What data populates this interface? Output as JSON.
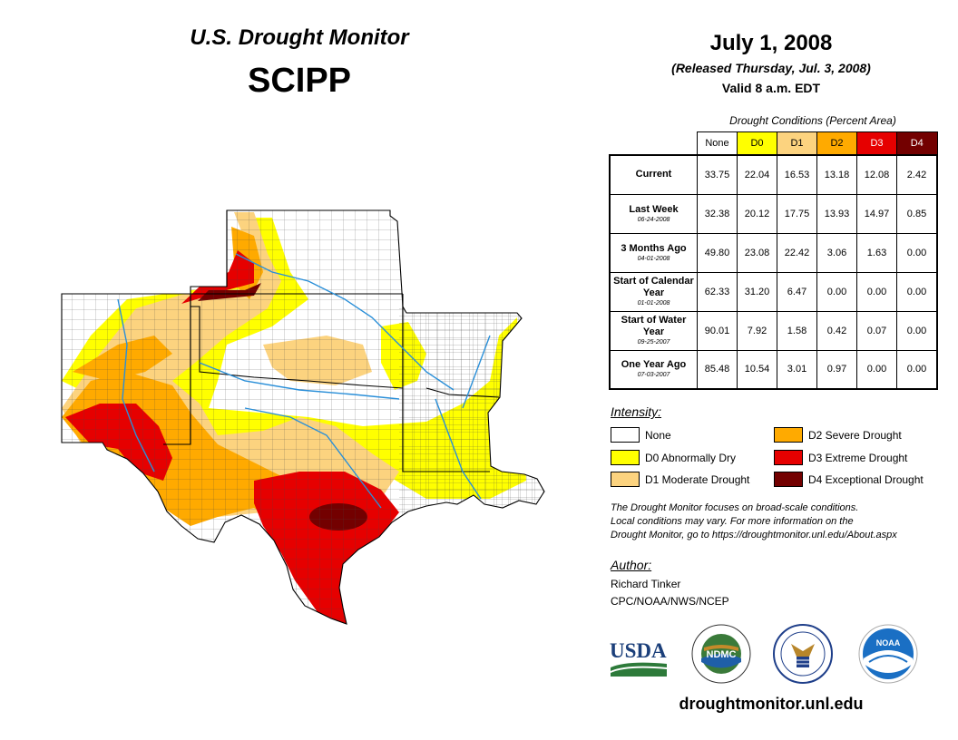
{
  "header": {
    "title": "U.S. Drought Monitor",
    "region": "SCIPP",
    "date": "July 1, 2008",
    "released": "(Released Thursday, Jul. 3, 2008)",
    "valid": "Valid 8 a.m. EDT"
  },
  "table": {
    "title": "Drought Conditions (Percent Area)",
    "columns": [
      "None",
      "D0",
      "D1",
      "D2",
      "D3",
      "D4"
    ],
    "rows": [
      {
        "label": "Current",
        "sub": "",
        "values": [
          "33.75",
          "22.04",
          "16.53",
          "13.18",
          "12.08",
          "2.42"
        ]
      },
      {
        "label": "Last Week",
        "sub": "06-24-2008",
        "values": [
          "32.38",
          "20.12",
          "17.75",
          "13.93",
          "14.97",
          "0.85"
        ]
      },
      {
        "label": "3 Months Ago",
        "sub": "04-01-2008",
        "values": [
          "49.80",
          "23.08",
          "22.42",
          "3.06",
          "1.63",
          "0.00"
        ]
      },
      {
        "label": "Start of Calendar Year",
        "sub": "01-01-2008",
        "values": [
          "62.33",
          "31.20",
          "6.47",
          "0.00",
          "0.00",
          "0.00"
        ]
      },
      {
        "label": "Start of Water Year",
        "sub": "09-25-2007",
        "values": [
          "90.01",
          "7.92",
          "1.58",
          "0.42",
          "0.07",
          "0.00"
        ]
      },
      {
        "label": "One Year Ago",
        "sub": "07-03-2007",
        "values": [
          "85.48",
          "10.54",
          "3.01",
          "0.97",
          "0.00",
          "0.00"
        ]
      }
    ]
  },
  "legend": {
    "title": "Intensity:",
    "items": [
      {
        "label": "None",
        "color": "#ffffff"
      },
      {
        "label": "D0 Abnormally Dry",
        "color": "#ffff00"
      },
      {
        "label": "D1 Moderate Drought",
        "color": "#fcd37f"
      },
      {
        "label": "D2 Severe Drought",
        "color": "#ffaa00"
      },
      {
        "label": "D3 Extreme Drought",
        "color": "#e60000"
      },
      {
        "label": "D4 Exceptional Drought",
        "color": "#730000"
      }
    ]
  },
  "disclaimer": {
    "line1": "The Drought Monitor focuses on broad-scale conditions.",
    "line2": "Local conditions may vary. For more information on the",
    "line3": "Drought Monitor, go to https://droughtmonitor.unl.edu/About.aspx"
  },
  "author": {
    "label": "Author:",
    "name": "Richard Tinker",
    "org": "CPC/NOAA/NWS/NCEP"
  },
  "logos": {
    "usda": "USDA",
    "ndmc": "NDMC",
    "noaa": "NOAA"
  },
  "url": "droughtmonitor.unl.edu"
}
